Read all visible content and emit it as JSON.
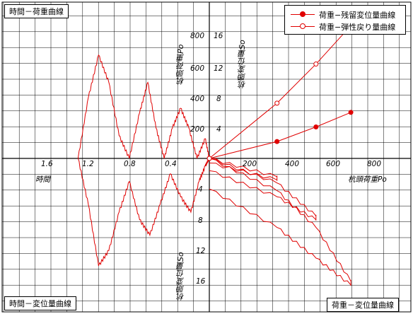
{
  "labels": {
    "top_left_title": "時間－荷重曲線",
    "bottom_left_title": "時間－変位量曲線",
    "bottom_right_title": "荷重－変位量曲線",
    "y_axis_load": "杭頭荷重Po",
    "y_axis_disp_top": "杭頭変位量So",
    "y_axis_disp_bottom": "杭頭変位量So",
    "x_axis_time": "時間",
    "x_axis_load": "杭頭荷重Po"
  },
  "legend": {
    "residual": "荷重−残留変位量曲線",
    "elastic": "荷重−弾性戻り量曲線"
  },
  "ticks": {
    "load_up": [
      "800",
      "600",
      "400",
      "200"
    ],
    "disp_up": [
      "16",
      "12",
      "8",
      "4"
    ],
    "time": [
      "1.6",
      "1.2",
      "0.8",
      "0.4"
    ],
    "load_right": [
      "200",
      "400",
      "600",
      "800"
    ],
    "disp_down": [
      "4",
      "8",
      "12",
      "16"
    ]
  },
  "chart_data": {
    "type": "line",
    "colors": {
      "curve": "#e00000",
      "grid": "#000000"
    },
    "series": [
      {
        "name": "荷重−残留変位量曲線",
        "x": [
          0,
          330,
          520,
          690
        ],
        "y": [
          0,
          2.2,
          4.1,
          6.0
        ]
      },
      {
        "name": "荷重−弾性戻り量曲線",
        "x": [
          0,
          330,
          520,
          690
        ],
        "y": [
          0,
          7.2,
          12.3,
          17.3
        ]
      }
    ],
    "time_load": {
      "x": [
        1.28,
        1.18,
        1.08,
        0.98,
        0.88,
        0.78,
        0.68,
        0.6,
        0.52,
        0.44,
        0.36,
        0.28,
        0.2,
        0.12,
        0.04,
        0.0
      ],
      "y": [
        0,
        400,
        680,
        500,
        150,
        0,
        300,
        500,
        200,
        0,
        200,
        330,
        200,
        0,
        130,
        0
      ]
    },
    "time_displacement": {
      "x": [
        1.28,
        1.18,
        1.08,
        0.98,
        0.88,
        0.78,
        0.68,
        0.58,
        0.48,
        0.38,
        0.28,
        0.18,
        0.1,
        0.04,
        0.0
      ],
      "y": [
        0,
        -6,
        -14,
        -12,
        -7,
        -3,
        -8,
        -10,
        -6,
        -2,
        -5,
        -7,
        -3,
        -1,
        0
      ]
    },
    "load_displacement_loops": [
      {
        "x": [
          0,
          330,
          330,
          0
        ],
        "y": [
          0,
          -2.4,
          -2.8,
          -0.6
        ]
      },
      {
        "x": [
          0,
          330,
          520,
          520,
          330,
          0
        ],
        "y": [
          0,
          -3.2,
          -7.5,
          -8.0,
          -5.0,
          -1.6
        ]
      },
      {
        "x": [
          0,
          330,
          520,
          690,
          690,
          520,
          330,
          0
        ],
        "y": [
          0,
          -4.2,
          -9.0,
          -16.0,
          -16.5,
          -13.0,
          -9.0,
          -4.0
        ]
      }
    ]
  }
}
